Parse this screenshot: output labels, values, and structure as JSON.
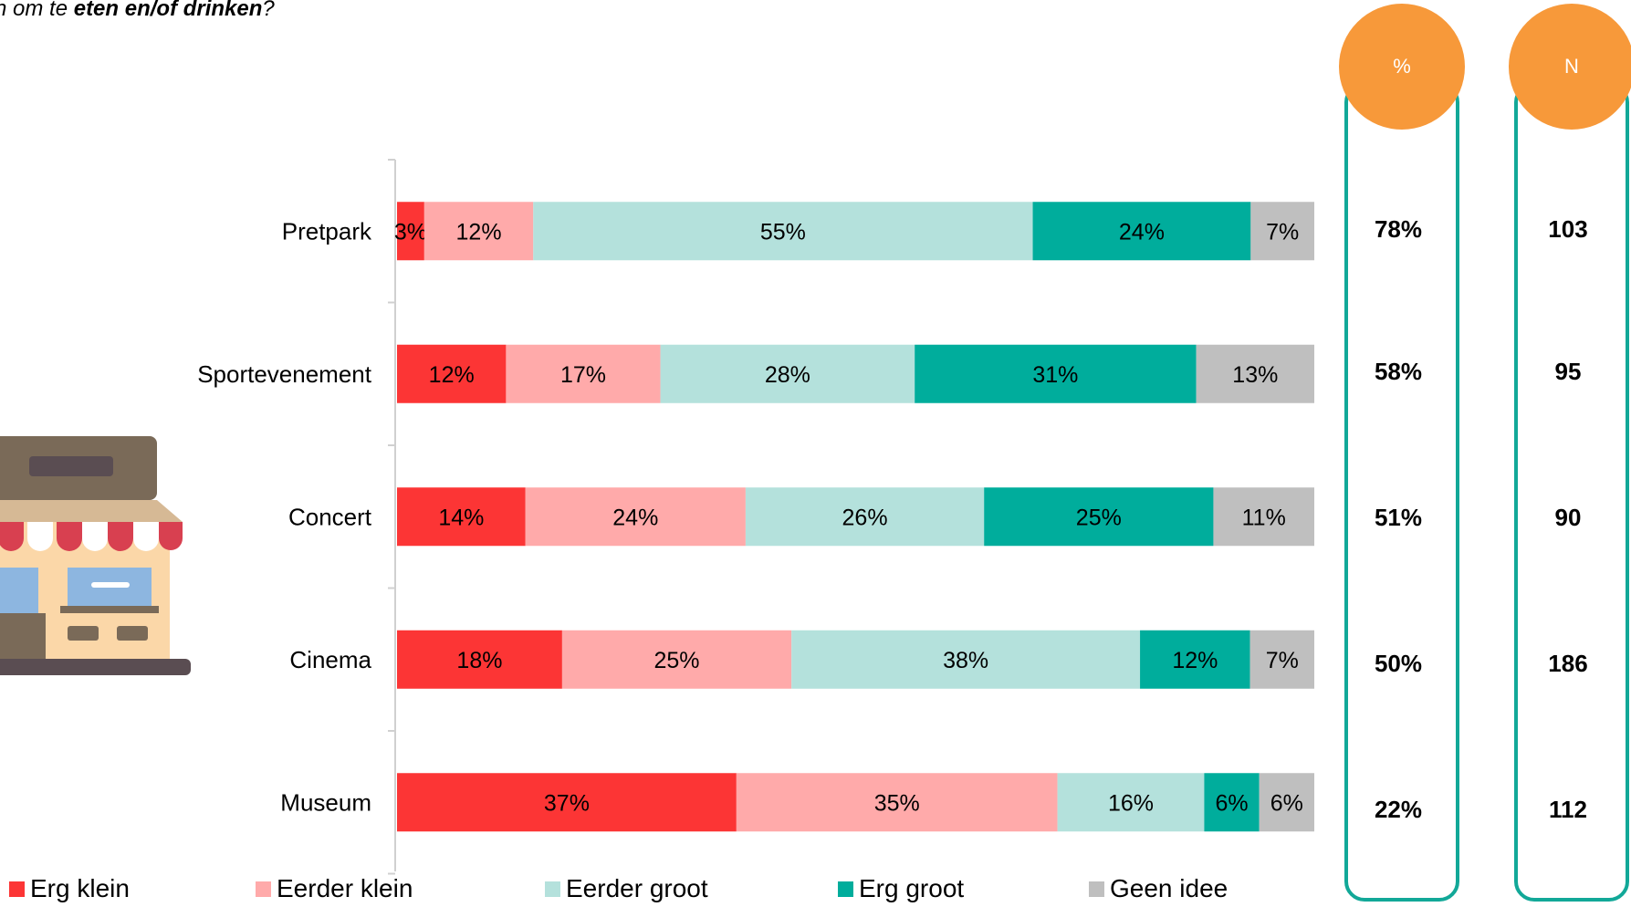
{
  "question": {
    "lead": "n om te ",
    "bold": "eten en/of drinken",
    "tail": "?"
  },
  "colors": {
    "erg_klein": "#fc3535",
    "eerder_klein": "#ffaaaa",
    "eerder_groot": "#b4e1dc",
    "erg_groot": "#00ad9c",
    "geen_idee": "#bfbfbf",
    "badge": "#f7993a",
    "frame": "#12a898"
  },
  "icon": "shop-building-icon",
  "chart_data": {
    "type": "bar",
    "orientation": "horizontal",
    "stacked": true,
    "categories": [
      "Pretpark",
      "Sportevenement",
      "Concert",
      "Cinema",
      "Museum"
    ],
    "series": [
      {
        "name": "Erg klein",
        "values": [
          3,
          12,
          14,
          18,
          37
        ]
      },
      {
        "name": "Eerder klein",
        "values": [
          12,
          17,
          24,
          25,
          35
        ]
      },
      {
        "name": "Eerder groot",
        "values": [
          55,
          28,
          26,
          38,
          16
        ]
      },
      {
        "name": "Erg groot",
        "values": [
          24,
          31,
          25,
          12,
          6
        ]
      },
      {
        "name": "Geen idee",
        "values": [
          7,
          13,
          11,
          7,
          6
        ]
      }
    ],
    "label_suffix": "%",
    "legend_position": "bottom"
  },
  "side_columns": [
    {
      "header": "%",
      "values": [
        "78%",
        "58%",
        "51%",
        "50%",
        "22%"
      ]
    },
    {
      "header": "N",
      "values": [
        "103",
        "95",
        "90",
        "186",
        "112"
      ]
    }
  ]
}
